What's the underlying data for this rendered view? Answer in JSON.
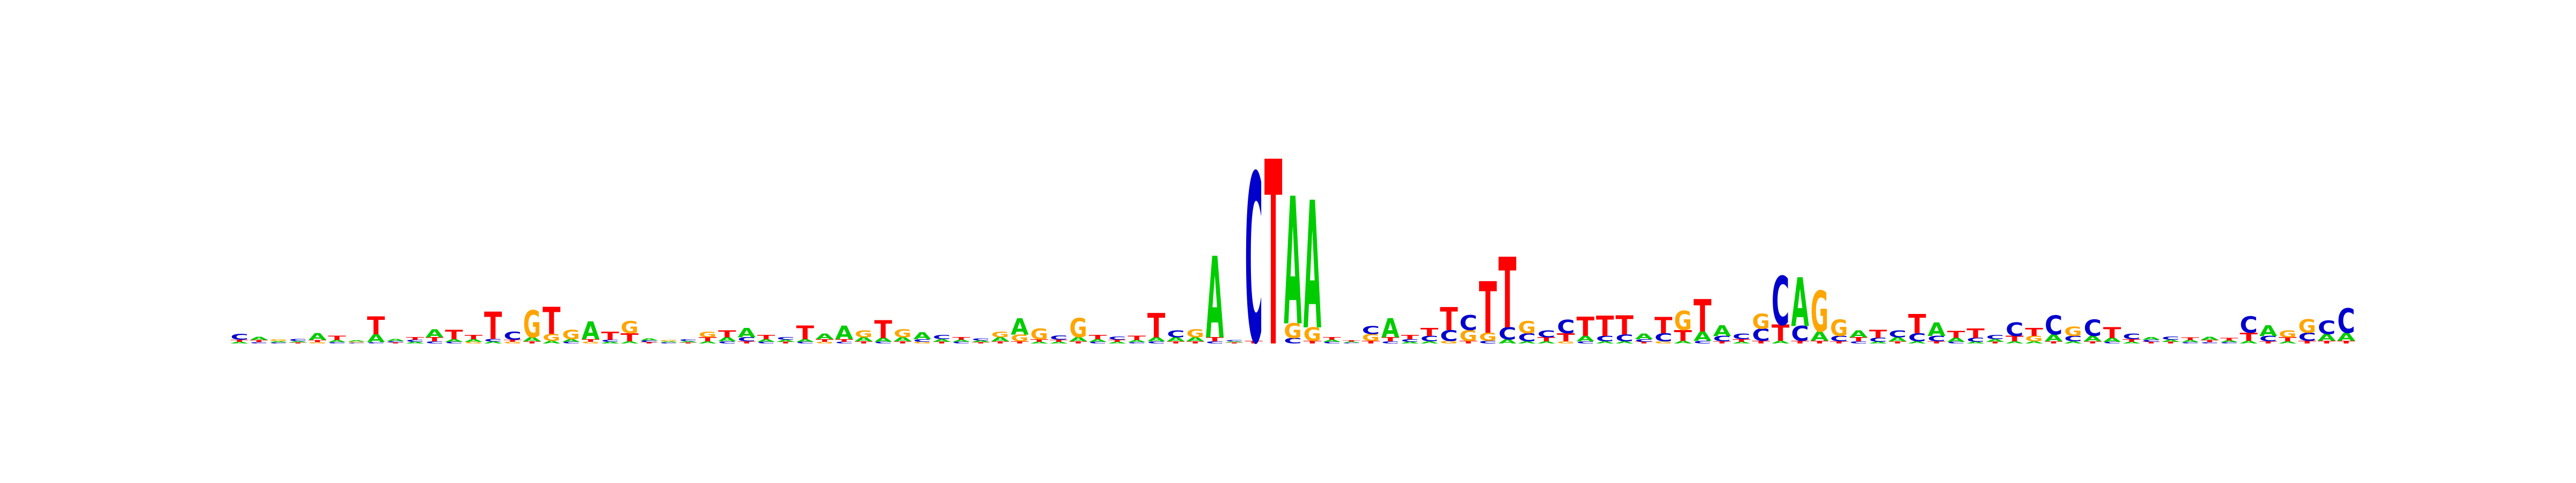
{
  "colors": {
    "A": "#00cc00",
    "C": "#0000cc",
    "G": "#ffa500",
    "T": "#ff0000",
    "background": "#ffffff"
  },
  "logo": {
    "positions": [
      [
        [
          "C",
          0.22
        ],
        [
          "T",
          0.08
        ],
        [
          "A",
          0.06
        ]
      ],
      [
        [
          "A",
          0.12
        ],
        [
          "T",
          0.08
        ],
        [
          "C",
          0.05
        ]
      ],
      [
        [
          "G",
          0.06
        ],
        [
          "A",
          0.05
        ],
        [
          "C",
          0.04
        ]
      ],
      [
        [
          "C",
          0.08
        ],
        [
          "A",
          0.05
        ],
        [
          "T",
          0.04
        ]
      ],
      [
        [
          "A",
          0.25
        ],
        [
          "T",
          0.08
        ],
        [
          "G",
          0.05
        ]
      ],
      [
        [
          "T",
          0.15
        ],
        [
          "A",
          0.08
        ],
        [
          "C",
          0.05
        ]
      ],
      [
        [
          "A",
          0.05
        ],
        [
          "G",
          0.04
        ],
        [
          "C",
          0.03
        ]
      ],
      [
        [
          "T",
          0.65
        ],
        [
          "A",
          0.3
        ],
        [
          "C",
          0.05
        ]
      ],
      [
        [
          "A",
          0.07
        ],
        [
          "C",
          0.05
        ],
        [
          "T",
          0.04
        ]
      ],
      [
        [
          "T",
          0.1
        ],
        [
          "C",
          0.08
        ],
        [
          "A",
          0.06
        ]
      ],
      [
        [
          "A",
          0.3
        ],
        [
          "T",
          0.15
        ],
        [
          "C",
          0.08
        ]
      ],
      [
        [
          "T",
          0.35
        ],
        [
          "A",
          0.1
        ],
        [
          "C",
          0.06
        ]
      ],
      [
        [
          "T",
          0.15
        ],
        [
          "A",
          0.1
        ],
        [
          "G",
          0.06
        ]
      ],
      [
        [
          "T",
          1.0
        ],
        [
          "C",
          0.1
        ],
        [
          "A",
          0.07
        ]
      ],
      [
        [
          "C",
          0.3
        ],
        [
          "T",
          0.08
        ],
        [
          "G",
          0.06
        ]
      ],
      [
        [
          "G",
          1.0
        ],
        [
          "A",
          0.15
        ],
        [
          "T",
          0.08
        ]
      ],
      [
        [
          "T",
          1.0
        ],
        [
          "G",
          0.25
        ],
        [
          "A",
          0.1
        ]
      ],
      [
        [
          "G",
          0.35
        ],
        [
          "A",
          0.1
        ],
        [
          "C",
          0.06
        ]
      ],
      [
        [
          "A",
          0.65
        ],
        [
          "T",
          0.1
        ],
        [
          "G",
          0.06
        ]
      ],
      [
        [
          "T",
          0.3
        ],
        [
          "C",
          0.08
        ],
        [
          "A",
          0.06
        ]
      ],
      [
        [
          "G",
          0.45
        ],
        [
          "T",
          0.3
        ],
        [
          "A",
          0.08
        ]
      ],
      [
        [
          "A",
          0.08
        ],
        [
          "C",
          0.06
        ],
        [
          "T",
          0.05
        ]
      ],
      [
        [
          "G",
          0.05
        ],
        [
          "C",
          0.04
        ],
        [
          "A",
          0.04
        ]
      ],
      [
        [
          "C",
          0.06
        ],
        [
          "A",
          0.05
        ],
        [
          "T",
          0.04
        ]
      ],
      [
        [
          "G",
          0.2
        ],
        [
          "T",
          0.15
        ],
        [
          "A",
          0.08
        ]
      ],
      [
        [
          "T",
          0.25
        ],
        [
          "A",
          0.15
        ],
        [
          "C",
          0.08
        ]
      ],
      [
        [
          "A",
          0.35
        ],
        [
          "C",
          0.15
        ],
        [
          "T",
          0.08
        ]
      ],
      [
        [
          "T",
          0.15
        ],
        [
          "A",
          0.1
        ],
        [
          "C",
          0.06
        ]
      ],
      [
        [
          "C",
          0.1
        ],
        [
          "A",
          0.08
        ],
        [
          "T",
          0.06
        ]
      ],
      [
        [
          "T",
          0.5
        ],
        [
          "A",
          0.1
        ],
        [
          "C",
          0.06
        ]
      ],
      [
        [
          "A",
          0.2
        ],
        [
          "T",
          0.1
        ],
        [
          "G",
          0.06
        ]
      ],
      [
        [
          "A",
          0.5
        ],
        [
          "T",
          0.1
        ],
        [
          "C",
          0.06
        ]
      ],
      [
        [
          "G",
          0.25
        ],
        [
          "A",
          0.15
        ],
        [
          "T",
          0.08
        ]
      ],
      [
        [
          "T",
          0.65
        ],
        [
          "A",
          0.15
        ],
        [
          "C",
          0.06
        ]
      ],
      [
        [
          "G",
          0.3
        ],
        [
          "A",
          0.15
        ],
        [
          "T",
          0.08
        ]
      ],
      [
        [
          "A",
          0.25
        ],
        [
          "C",
          0.1
        ],
        [
          "G",
          0.06
        ]
      ],
      [
        [
          "C",
          0.15
        ],
        [
          "A",
          0.1
        ],
        [
          "T",
          0.06
        ]
      ],
      [
        [
          "T",
          0.1
        ],
        [
          "A",
          0.08
        ],
        [
          "C",
          0.06
        ]
      ],
      [
        [
          "C",
          0.08
        ],
        [
          "A",
          0.06
        ],
        [
          "T",
          0.05
        ]
      ],
      [
        [
          "G",
          0.2
        ],
        [
          "A",
          0.15
        ],
        [
          "T",
          0.08
        ]
      ],
      [
        [
          "A",
          0.6
        ],
        [
          "G",
          0.25
        ],
        [
          "T",
          0.08
        ]
      ],
      [
        [
          "G",
          0.4
        ],
        [
          "T",
          0.1
        ],
        [
          "A",
          0.06
        ]
      ],
      [
        [
          "C",
          0.15
        ],
        [
          "T",
          0.08
        ],
        [
          "A",
          0.06
        ]
      ],
      [
        [
          "G",
          0.7
        ],
        [
          "A",
          0.15
        ],
        [
          "T",
          0.08
        ]
      ],
      [
        [
          "T",
          0.15
        ],
        [
          "A",
          0.1
        ],
        [
          "C",
          0.06
        ]
      ],
      [
        [
          "C",
          0.12
        ],
        [
          "T",
          0.08
        ],
        [
          "A",
          0.06
        ]
      ],
      [
        [
          "T",
          0.15
        ],
        [
          "A",
          0.08
        ],
        [
          "C",
          0.05
        ]
      ],
      [
        [
          "T",
          0.9
        ],
        [
          "A",
          0.15
        ],
        [
          "C",
          0.08
        ]
      ],
      [
        [
          "C",
          0.25
        ],
        [
          "A",
          0.15
        ],
        [
          "T",
          0.08
        ]
      ],
      [
        [
          "G",
          0.3
        ],
        [
          "A",
          0.15
        ],
        [
          "T",
          0.08
        ]
      ],
      [
        [
          "A",
          3.0
        ],
        [
          "T",
          0.15
        ],
        [
          "C",
          0.08
        ]
      ],
      [
        [
          "C",
          0.05
        ],
        [
          "T",
          0.04
        ],
        [
          "A",
          0.04
        ]
      ],
      [
        [
          "C",
          6.2
        ],
        [
          "T",
          0.1
        ]
      ],
      [
        [
          "T",
          6.8
        ]
      ],
      [
        [
          "A",
          4.7
        ],
        [
          "G",
          0.55
        ],
        [
          "C",
          0.2
        ]
      ],
      [
        [
          "A",
          4.7
        ],
        [
          "G",
          0.5
        ],
        [
          "T",
          0.1
        ]
      ],
      [
        [
          "T",
          0.1
        ],
        [
          "A",
          0.08
        ],
        [
          "C",
          0.06
        ]
      ],
      [
        [
          "T",
          0.05
        ],
        [
          "A",
          0.04
        ],
        [
          "C",
          0.03
        ]
      ],
      [
        [
          "C",
          0.3
        ],
        [
          "G",
          0.25
        ],
        [
          "T",
          0.1
        ]
      ],
      [
        [
          "A",
          0.7
        ],
        [
          "T",
          0.15
        ],
        [
          "C",
          0.08
        ]
      ],
      [
        [
          "T",
          0.15
        ],
        [
          "C",
          0.1
        ],
        [
          "A",
          0.06
        ]
      ],
      [
        [
          "T",
          0.3
        ],
        [
          "C",
          0.2
        ],
        [
          "A",
          0.08
        ]
      ],
      [
        [
          "T",
          0.85
        ],
        [
          "C",
          0.4
        ],
        [
          "G",
          0.1
        ]
      ],
      [
        [
          "C",
          0.55
        ],
        [
          "G",
          0.4
        ],
        [
          "T",
          0.1
        ]
      ],
      [
        [
          "T",
          1.9
        ],
        [
          "G",
          0.3
        ],
        [
          "C",
          0.1
        ]
      ],
      [
        [
          "T",
          2.6
        ],
        [
          "C",
          0.45
        ],
        [
          "A",
          0.15
        ]
      ],
      [
        [
          "G",
          0.45
        ],
        [
          "C",
          0.3
        ],
        [
          "A",
          0.08
        ]
      ],
      [
        [
          "C",
          0.25
        ],
        [
          "T",
          0.15
        ],
        [
          "A",
          0.08
        ]
      ],
      [
        [
          "C",
          0.5
        ],
        [
          "T",
          0.3
        ],
        [
          "G",
          0.08
        ]
      ],
      [
        [
          "T",
          0.7
        ],
        [
          "A",
          0.2
        ],
        [
          "C",
          0.08
        ]
      ],
      [
        [
          "T",
          0.75
        ],
        [
          "C",
          0.2
        ],
        [
          "A",
          0.08
        ]
      ],
      [
        [
          "T",
          0.7
        ],
        [
          "C",
          0.25
        ],
        [
          "A",
          0.08
        ]
      ],
      [
        [
          "A",
          0.2
        ],
        [
          "C",
          0.1
        ],
        [
          "T",
          0.06
        ]
      ],
      [
        [
          "T",
          0.6
        ],
        [
          "C",
          0.3
        ],
        [
          "G",
          0.08
        ]
      ],
      [
        [
          "G",
          0.7
        ],
        [
          "T",
          0.4
        ],
        [
          "A",
          0.1
        ]
      ],
      [
        [
          "T",
          1.2
        ],
        [
          "A",
          0.35
        ],
        [
          "C",
          0.1
        ]
      ],
      [
        [
          "A",
          0.4
        ],
        [
          "C",
          0.2
        ],
        [
          "T",
          0.08
        ]
      ],
      [
        [
          "C",
          0.2
        ],
        [
          "T",
          0.1
        ],
        [
          "A",
          0.06
        ]
      ],
      [
        [
          "G",
          0.55
        ],
        [
          "C",
          0.45
        ],
        [
          "T",
          0.1
        ]
      ],
      [
        [
          "C",
          1.8
        ],
        [
          "T",
          0.6
        ],
        [
          "A",
          0.1
        ]
      ],
      [
        [
          "A",
          1.8
        ],
        [
          "C",
          0.55
        ],
        [
          "T",
          0.1
        ]
      ],
      [
        [
          "G",
          1.5
        ],
        [
          "A",
          0.35
        ],
        [
          "T",
          0.1
        ]
      ],
      [
        [
          "G",
          0.6
        ],
        [
          "C",
          0.2
        ],
        [
          "T",
          0.08
        ]
      ],
      [
        [
          "A",
          0.25
        ],
        [
          "T",
          0.15
        ],
        [
          "C",
          0.08
        ]
      ],
      [
        [
          "T",
          0.3
        ],
        [
          "C",
          0.15
        ],
        [
          "A",
          0.06
        ]
      ],
      [
        [
          "C",
          0.25
        ],
        [
          "A",
          0.15
        ],
        [
          "T",
          0.08
        ]
      ],
      [
        [
          "T",
          0.7
        ],
        [
          "C",
          0.3
        ],
        [
          "A",
          0.08
        ]
      ],
      [
        [
          "A",
          0.5
        ],
        [
          "C",
          0.2
        ],
        [
          "T",
          0.08
        ]
      ],
      [
        [
          "T",
          0.25
        ],
        [
          "A",
          0.15
        ],
        [
          "C",
          0.06
        ]
      ],
      [
        [
          "T",
          0.35
        ],
        [
          "C",
          0.15
        ],
        [
          "A",
          0.06
        ]
      ],
      [
        [
          "C",
          0.15
        ],
        [
          "A",
          0.1
        ],
        [
          "T",
          0.06
        ]
      ],
      [
        [
          "C",
          0.5
        ],
        [
          "T",
          0.2
        ],
        [
          "A",
          0.08
        ]
      ],
      [
        [
          "T",
          0.3
        ],
        [
          "G",
          0.2
        ],
        [
          "A",
          0.08
        ]
      ],
      [
        [
          "C",
          0.7
        ],
        [
          "A",
          0.25
        ],
        [
          "T",
          0.08
        ]
      ],
      [
        [
          "G",
          0.35
        ],
        [
          "C",
          0.2
        ],
        [
          "A",
          0.08
        ]
      ],
      [
        [
          "C",
          0.6
        ],
        [
          "A",
          0.2
        ],
        [
          "T",
          0.08
        ]
      ],
      [
        [
          "T",
          0.4
        ],
        [
          "A",
          0.15
        ],
        [
          "C",
          0.06
        ]
      ],
      [
        [
          "C",
          0.2
        ],
        [
          "T",
          0.1
        ],
        [
          "A",
          0.06
        ]
      ],
      [
        [
          "A",
          0.1
        ],
        [
          "C",
          0.08
        ],
        [
          "T",
          0.06
        ]
      ],
      [
        [
          "C",
          0.12
        ],
        [
          "A",
          0.08
        ],
        [
          "T",
          0.06
        ]
      ],
      [
        [
          "T",
          0.1
        ],
        [
          "A",
          0.08
        ],
        [
          "C",
          0.05
        ]
      ],
      [
        [
          "A",
          0.12
        ],
        [
          "T",
          0.08
        ],
        [
          "C",
          0.05
        ]
      ],
      [
        [
          "T",
          0.1
        ],
        [
          "A",
          0.06
        ],
        [
          "C",
          0.05
        ]
      ],
      [
        [
          "C",
          0.6
        ],
        [
          "T",
          0.3
        ],
        [
          "A",
          0.1
        ]
      ],
      [
        [
          "A",
          0.4
        ],
        [
          "C",
          0.2
        ],
        [
          "T",
          0.08
        ]
      ],
      [
        [
          "G",
          0.25
        ],
        [
          "T",
          0.15
        ],
        [
          "A",
          0.08
        ]
      ],
      [
        [
          "G",
          0.5
        ],
        [
          "C",
          0.3
        ],
        [
          "T",
          0.1
        ]
      ],
      [
        [
          "C",
          0.5
        ],
        [
          "A",
          0.25
        ],
        [
          "T",
          0.1
        ]
      ],
      [
        [
          "C",
          0.9
        ],
        [
          "A",
          0.3
        ],
        [
          "T",
          0.1
        ]
      ]
    ]
  }
}
